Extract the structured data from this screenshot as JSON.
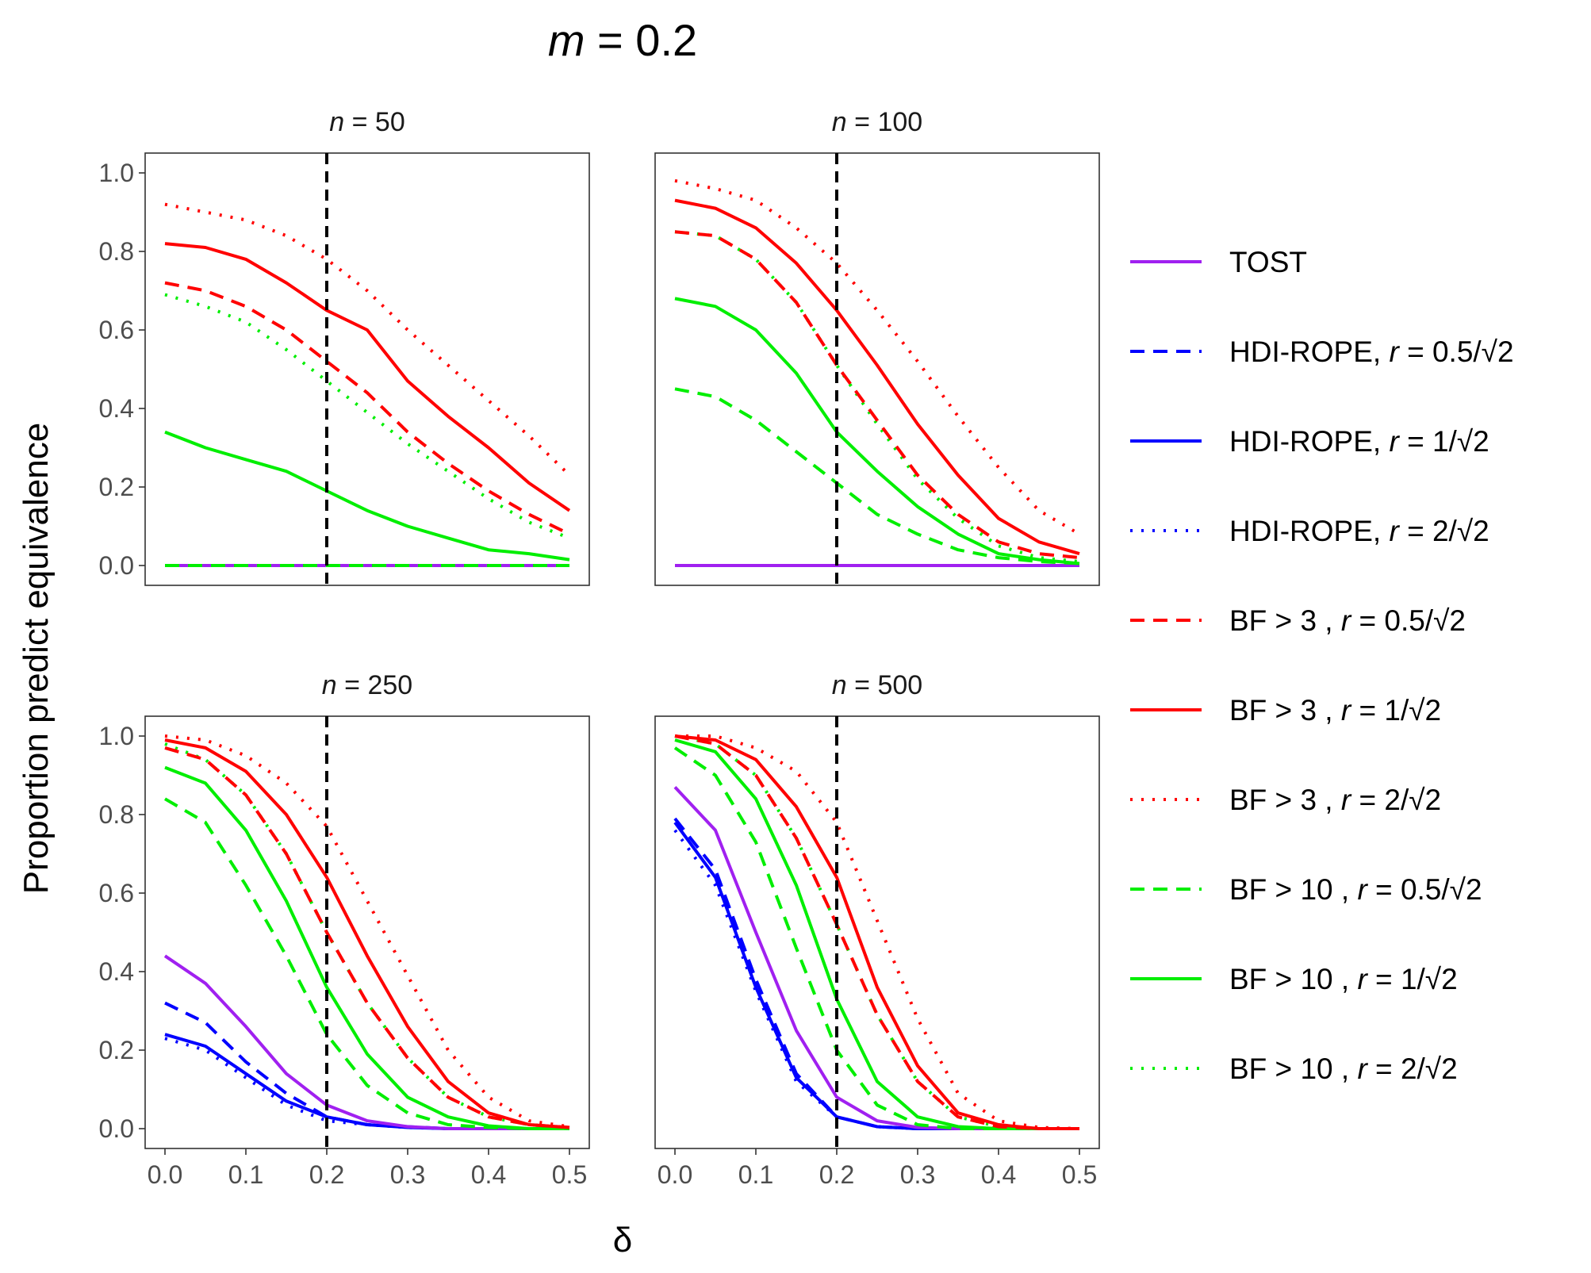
{
  "chart_data": {
    "type": "line",
    "title": "m = 0.2",
    "title_var": "m",
    "title_rest": " = 0.2",
    "xlabel": "δ",
    "ylabel": "Proportion predict equivalence",
    "xlim": [
      0,
      0.5
    ],
    "ylim": [
      0,
      1
    ],
    "x_ticks": [
      "0.0",
      "0.1",
      "0.2",
      "0.3",
      "0.4",
      "0.5"
    ],
    "y_ticks": [
      "0.0",
      "0.2",
      "0.4",
      "0.6",
      "0.8",
      "1.0"
    ],
    "reference_line_x": 0.2,
    "legend_position": "right",
    "legend": [
      {
        "key": "tost",
        "prefix": "TOST",
        "r": "",
        "color": "#a020f0",
        "dash": "solid"
      },
      {
        "key": "hdi05",
        "prefix": "HDI-ROPE, ",
        "r": "0.5",
        "color": "#0000ff",
        "dash": "dashed"
      },
      {
        "key": "hdi1",
        "prefix": "HDI-ROPE, ",
        "r": "1",
        "color": "#0000ff",
        "dash": "solid"
      },
      {
        "key": "hdi2",
        "prefix": "HDI-ROPE, ",
        "r": "2",
        "color": "#0000ff",
        "dash": "dotted"
      },
      {
        "key": "bf3_05",
        "prefix": "BF > 3 , ",
        "r": "0.5",
        "color": "#ff0000",
        "dash": "dashed"
      },
      {
        "key": "bf3_1",
        "prefix": "BF > 3 , ",
        "r": "1",
        "color": "#ff0000",
        "dash": "solid"
      },
      {
        "key": "bf3_2",
        "prefix": "BF > 3 , ",
        "r": "2",
        "color": "#ff0000",
        "dash": "dotted"
      },
      {
        "key": "bf10_05",
        "prefix": "BF > 10 , ",
        "r": "0.5",
        "color": "#00ee00",
        "dash": "dashed"
      },
      {
        "key": "bf10_1",
        "prefix": "BF > 10 , ",
        "r": "1",
        "color": "#00ee00",
        "dash": "solid"
      },
      {
        "key": "bf10_2",
        "prefix": "BF > 10 , ",
        "r": "2",
        "color": "#00ee00",
        "dash": "dotted"
      }
    ],
    "x": [
      0.0,
      0.05,
      0.1,
      0.15,
      0.2,
      0.25,
      0.3,
      0.35,
      0.4,
      0.45,
      0.5
    ],
    "panels": [
      {
        "label_var": "n",
        "label_rest": " = 50",
        "series": {
          "tost": [
            0,
            0,
            0,
            0,
            0,
            0,
            0,
            0,
            0,
            0,
            0
          ],
          "hdi05": [
            0,
            0,
            0,
            0,
            0,
            0,
            0,
            0,
            0,
            0,
            0
          ],
          "hdi1": [
            0,
            0,
            0,
            0,
            0,
            0,
            0,
            0,
            0,
            0,
            0
          ],
          "hdi2": [
            0,
            0,
            0,
            0,
            0,
            0,
            0,
            0,
            0,
            0,
            0
          ],
          "bf3_05": [
            0.72,
            0.7,
            0.66,
            0.6,
            0.52,
            0.44,
            0.34,
            0.26,
            0.19,
            0.13,
            0.08
          ],
          "bf3_1": [
            0.82,
            0.81,
            0.78,
            0.72,
            0.65,
            0.6,
            0.47,
            0.38,
            0.3,
            0.21,
            0.14
          ],
          "bf3_2": [
            0.92,
            0.9,
            0.88,
            0.84,
            0.78,
            0.7,
            0.6,
            0.51,
            0.42,
            0.33,
            0.23
          ],
          "bf10_05": [
            0,
            0,
            0,
            0,
            0,
            0,
            0,
            0,
            0,
            0,
            0
          ],
          "bf10_1": [
            0.34,
            0.3,
            0.27,
            0.24,
            0.19,
            0.14,
            0.1,
            0.07,
            0.04,
            0.03,
            0.015
          ],
          "bf10_2": [
            0.69,
            0.66,
            0.62,
            0.55,
            0.47,
            0.39,
            0.31,
            0.24,
            0.17,
            0.11,
            0.07
          ]
        }
      },
      {
        "label_var": "n",
        "label_rest": " = 100",
        "series": {
          "tost": [
            0,
            0,
            0,
            0,
            0,
            0,
            0,
            0,
            0,
            0,
            0
          ],
          "hdi05": [
            0,
            0,
            0,
            0,
            0,
            0,
            0,
            0,
            0,
            0,
            0
          ],
          "hdi1": [
            0,
            0,
            0,
            0,
            0,
            0,
            0,
            0,
            0,
            0,
            0
          ],
          "hdi2": [
            0,
            0,
            0,
            0,
            0,
            0,
            0,
            0,
            0,
            0,
            0
          ],
          "bf3_05": [
            0.85,
            0.84,
            0.78,
            0.67,
            0.51,
            0.37,
            0.23,
            0.13,
            0.06,
            0.03,
            0.02
          ],
          "bf3_1": [
            0.93,
            0.91,
            0.86,
            0.77,
            0.65,
            0.51,
            0.36,
            0.23,
            0.12,
            0.06,
            0.03
          ],
          "bf3_2": [
            0.98,
            0.96,
            0.93,
            0.86,
            0.77,
            0.65,
            0.52,
            0.38,
            0.25,
            0.14,
            0.08
          ],
          "bf10_05": [
            0.45,
            0.43,
            0.37,
            0.29,
            0.21,
            0.13,
            0.08,
            0.04,
            0.02,
            0.01,
            0.005
          ],
          "bf10_1": [
            0.68,
            0.66,
            0.6,
            0.49,
            0.34,
            0.24,
            0.15,
            0.08,
            0.03,
            0.015,
            0.005
          ],
          "bf10_2": [
            0.85,
            0.84,
            0.78,
            0.67,
            0.51,
            0.36,
            0.22,
            0.12,
            0.05,
            0.02,
            0.01
          ]
        }
      },
      {
        "label_var": "n",
        "label_rest": " = 250",
        "series": {
          "tost": [
            0.44,
            0.37,
            0.26,
            0.14,
            0.06,
            0.02,
            0.005,
            0,
            0,
            0,
            0
          ],
          "hdi05": [
            0.32,
            0.27,
            0.17,
            0.09,
            0.03,
            0.01,
            0.005,
            0,
            0,
            0,
            0
          ],
          "hdi1": [
            0.24,
            0.21,
            0.14,
            0.07,
            0.03,
            0.01,
            0.003,
            0,
            0,
            0,
            0
          ],
          "hdi2": [
            0.23,
            0.2,
            0.13,
            0.06,
            0.02,
            0.01,
            0.003,
            0,
            0,
            0,
            0
          ],
          "bf3_05": [
            0.97,
            0.94,
            0.85,
            0.7,
            0.5,
            0.32,
            0.18,
            0.08,
            0.03,
            0.01,
            0.003
          ],
          "bf3_1": [
            0.99,
            0.97,
            0.91,
            0.8,
            0.64,
            0.44,
            0.26,
            0.12,
            0.04,
            0.01,
            0.003
          ],
          "bf3_2": [
            1.0,
            0.99,
            0.95,
            0.88,
            0.77,
            0.58,
            0.39,
            0.2,
            0.08,
            0.02,
            0.005
          ],
          "bf10_05": [
            0.84,
            0.78,
            0.62,
            0.44,
            0.24,
            0.11,
            0.04,
            0.01,
            0.003,
            0,
            0
          ],
          "bf10_1": [
            0.92,
            0.88,
            0.76,
            0.58,
            0.36,
            0.19,
            0.08,
            0.03,
            0.007,
            0,
            0
          ],
          "bf10_2": [
            0.98,
            0.94,
            0.85,
            0.7,
            0.5,
            0.32,
            0.18,
            0.08,
            0.03,
            0.01,
            0.003
          ]
        }
      },
      {
        "label_var": "n",
        "label_rest": " = 500",
        "series": {
          "tost": [
            0.87,
            0.76,
            0.5,
            0.25,
            0.08,
            0.02,
            0.003,
            0,
            0,
            0,
            0
          ],
          "hdi05": [
            0.79,
            0.66,
            0.38,
            0.14,
            0.03,
            0.005,
            0,
            0,
            0,
            0,
            0
          ],
          "hdi1": [
            0.78,
            0.64,
            0.36,
            0.13,
            0.03,
            0.005,
            0,
            0,
            0,
            0,
            0
          ],
          "hdi2": [
            0.76,
            0.62,
            0.35,
            0.12,
            0.03,
            0.005,
            0,
            0,
            0,
            0,
            0
          ],
          "bf3_05": [
            1.0,
            0.98,
            0.9,
            0.74,
            0.52,
            0.29,
            0.12,
            0.03,
            0.005,
            0,
            0
          ],
          "bf3_1": [
            1.0,
            0.99,
            0.94,
            0.82,
            0.64,
            0.36,
            0.16,
            0.04,
            0.01,
            0,
            0
          ],
          "bf3_2": [
            1.0,
            1.0,
            0.97,
            0.91,
            0.78,
            0.53,
            0.28,
            0.09,
            0.02,
            0.003,
            0
          ],
          "bf10_05": [
            0.97,
            0.9,
            0.73,
            0.46,
            0.2,
            0.06,
            0.01,
            0,
            0,
            0,
            0
          ],
          "bf10_1": [
            0.99,
            0.96,
            0.84,
            0.62,
            0.33,
            0.12,
            0.03,
            0.005,
            0,
            0,
            0
          ],
          "bf10_2": [
            1.0,
            0.98,
            0.9,
            0.74,
            0.52,
            0.29,
            0.12,
            0.03,
            0.005,
            0,
            0
          ]
        }
      }
    ]
  }
}
